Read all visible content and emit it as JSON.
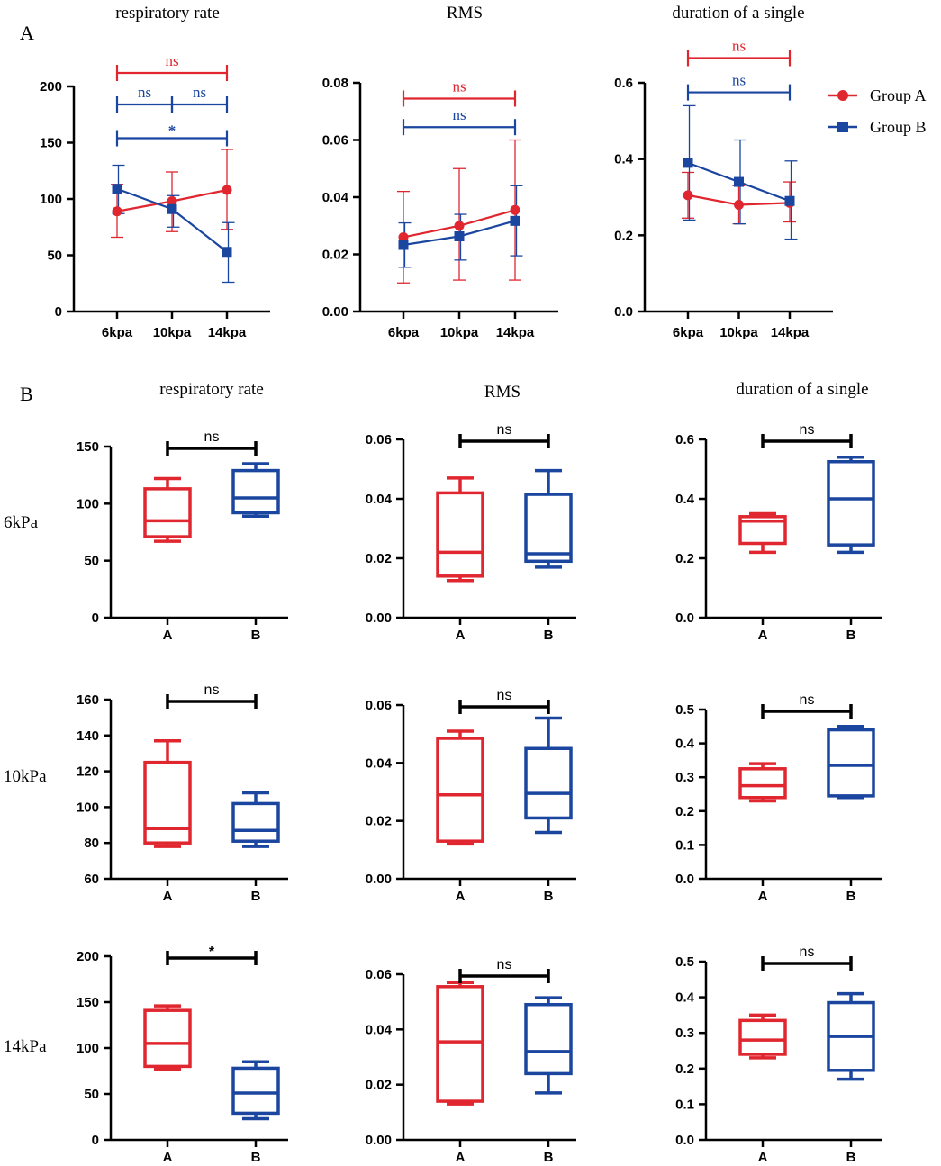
{
  "figure": {
    "panel_A_label": "A",
    "panel_B_label": "B",
    "row_labels": [
      "6kPa",
      "10kPa",
      "14kPa"
    ]
  },
  "colors": {
    "groupA": "#e0262f",
    "groupB": "#1b46a0",
    "axis": "#000000"
  },
  "legend": {
    "groupA": "Group A",
    "groupB": "Group B"
  },
  "chart_data": [
    {
      "id": "A1",
      "type": "line",
      "title": "respiratory rate",
      "categories": [
        "6kpa",
        "10kpa",
        "14kpa"
      ],
      "ylim": [
        0,
        200
      ],
      "yticks": [
        0,
        50,
        100,
        150,
        200
      ],
      "series": [
        {
          "name": "Group A",
          "color_key": "groupA",
          "marker": "circle",
          "values": [
            89,
            98,
            108
          ],
          "err_low": [
            66,
            71,
            73
          ],
          "err_high": [
            113,
            124,
            144
          ]
        },
        {
          "name": "Group B",
          "color_key": "groupB",
          "marker": "square",
          "values": [
            109,
            91,
            53
          ],
          "err_low": [
            87,
            75,
            26
          ],
          "err_high": [
            130,
            103,
            79
          ]
        }
      ],
      "annotations": [
        {
          "label": "ns",
          "color_key": "groupA",
          "from": 0,
          "to": 2,
          "y": 212
        },
        {
          "label": "ns",
          "color_key": "groupB",
          "from": 0,
          "to": 1,
          "y": 184
        },
        {
          "label": "ns",
          "color_key": "groupB",
          "from": 1,
          "to": 2,
          "y": 184
        },
        {
          "label": "*",
          "color_key": "groupB",
          "from": 0,
          "to": 2,
          "y": 154
        }
      ]
    },
    {
      "id": "A2",
      "type": "line",
      "title": "RMS",
      "categories": [
        "6kpa",
        "10kpa",
        "14kpa"
      ],
      "ylim": [
        0,
        0.08
      ],
      "yticks": [
        0.0,
        0.02,
        0.04,
        0.06,
        0.08
      ],
      "decimals": 2,
      "series": [
        {
          "name": "Group A",
          "color_key": "groupA",
          "marker": "circle",
          "values": [
            0.026,
            0.03,
            0.0355
          ],
          "err_low": [
            0.01,
            0.011,
            0.011
          ],
          "err_high": [
            0.042,
            0.05,
            0.06
          ]
        },
        {
          "name": "Group B",
          "color_key": "groupB",
          "marker": "square",
          "values": [
            0.0233,
            0.0263,
            0.0317
          ],
          "err_low": [
            0.0155,
            0.018,
            0.0195
          ],
          "err_high": [
            0.031,
            0.034,
            0.044
          ]
        }
      ],
      "annotations": [
        {
          "label": "ns",
          "color_key": "groupA",
          "from": 0,
          "to": 2,
          "y": 0.0745
        },
        {
          "label": "ns",
          "color_key": "groupB",
          "from": 0,
          "to": 2,
          "y": 0.0645
        }
      ]
    },
    {
      "id": "A3",
      "type": "line",
      "title": "duration of a single",
      "categories": [
        "6kpa",
        "10kpa",
        "14kpa"
      ],
      "ylim": [
        0,
        0.6
      ],
      "yticks": [
        0.0,
        0.2,
        0.4,
        0.6
      ],
      "decimals": 1,
      "series": [
        {
          "name": "Group A",
          "color_key": "groupA",
          "marker": "circle",
          "values": [
            0.305,
            0.28,
            0.285
          ],
          "err_low": [
            0.245,
            0.23,
            0.235
          ],
          "err_high": [
            0.365,
            0.33,
            0.34
          ]
        },
        {
          "name": "Group B",
          "color_key": "groupB",
          "marker": "square",
          "values": [
            0.39,
            0.34,
            0.29
          ],
          "err_low": [
            0.24,
            0.23,
            0.19
          ],
          "err_high": [
            0.54,
            0.45,
            0.395
          ]
        }
      ],
      "annotations": [
        {
          "label": "ns",
          "color_key": "groupA",
          "from": 0,
          "to": 2,
          "y": 0.665
        },
        {
          "label": "ns",
          "color_key": "groupB",
          "from": 0,
          "to": 2,
          "y": 0.575
        }
      ]
    },
    {
      "id": "B11",
      "type": "box",
      "title": "respiratory rate",
      "row": "6kPa",
      "categories": [
        "A",
        "B"
      ],
      "ylim": [
        0,
        150
      ],
      "yticks": [
        0,
        50,
        100,
        150
      ],
      "boxes": [
        {
          "group": "A",
          "color_key": "groupA",
          "min": 67,
          "q1": 71,
          "median": 85,
          "q3": 113,
          "max": 122
        },
        {
          "group": "B",
          "color_key": "groupB",
          "min": 89,
          "q1": 92,
          "median": 105,
          "q3": 129,
          "max": 135
        }
      ],
      "annotation": {
        "label": "ns",
        "y": 155
      }
    },
    {
      "id": "B12",
      "type": "box",
      "title": "RMS",
      "row": "6kPa",
      "categories": [
        "A",
        "B"
      ],
      "ylim": [
        0,
        0.06
      ],
      "yticks": [
        0.0,
        0.02,
        0.04,
        0.06
      ],
      "decimals": 2,
      "boxes": [
        {
          "group": "A",
          "color_key": "groupA",
          "min": 0.0125,
          "q1": 0.014,
          "median": 0.022,
          "q3": 0.042,
          "max": 0.047
        },
        {
          "group": "B",
          "color_key": "groupB",
          "min": 0.017,
          "q1": 0.019,
          "median": 0.0215,
          "q3": 0.0415,
          "max": 0.0495
        }
      ],
      "annotation": {
        "label": "ns",
        "y": 0.058
      }
    },
    {
      "id": "B13",
      "type": "box",
      "title": "duration of a single",
      "row": "6kPa",
      "categories": [
        "A",
        "B"
      ],
      "ylim": [
        0,
        0.6
      ],
      "yticks": [
        0.0,
        0.2,
        0.4,
        0.6
      ],
      "decimals": 1,
      "boxes": [
        {
          "group": "A",
          "color_key": "groupA",
          "min": 0.22,
          "q1": 0.25,
          "median": 0.325,
          "q3": 0.34,
          "max": 0.35
        },
        {
          "group": "B",
          "color_key": "groupB",
          "min": 0.22,
          "q1": 0.245,
          "median": 0.4,
          "q3": 0.525,
          "max": 0.54
        }
      ],
      "annotation": {
        "label": "ns",
        "y": 0.58
      }
    },
    {
      "id": "B21",
      "type": "box",
      "title": "respiratory rate",
      "row": "10kPa",
      "categories": [
        "A",
        "B"
      ],
      "ylim": [
        60,
        160
      ],
      "yticks": [
        60,
        80,
        100,
        120,
        140,
        160
      ],
      "boxes": [
        {
          "group": "A",
          "color_key": "groupA",
          "min": 78,
          "q1": 80,
          "median": 88,
          "q3": 125,
          "max": 137
        },
        {
          "group": "B",
          "color_key": "groupB",
          "min": 78,
          "q1": 81,
          "median": 87,
          "q3": 102,
          "max": 108
        }
      ],
      "annotation": {
        "label": "ns",
        "y": 155
      }
    },
    {
      "id": "B22",
      "type": "box",
      "title": "RMS",
      "row": "10kPa",
      "categories": [
        "A",
        "B"
      ],
      "ylim": [
        0,
        0.06
      ],
      "yticks": [
        0.0,
        0.02,
        0.04,
        0.06
      ],
      "decimals": 2,
      "boxes": [
        {
          "group": "A",
          "color_key": "groupA",
          "min": 0.012,
          "q1": 0.013,
          "median": 0.029,
          "q3": 0.0485,
          "max": 0.051
        },
        {
          "group": "B",
          "color_key": "groupB",
          "min": 0.016,
          "q1": 0.021,
          "median": 0.0295,
          "q3": 0.045,
          "max": 0.0555
        }
      ],
      "annotation": {
        "label": "ns",
        "y": 0.058
      }
    },
    {
      "id": "B23",
      "type": "box",
      "title": "duration of a single",
      "row": "10kPa",
      "categories": [
        "A",
        "B"
      ],
      "ylim": [
        0,
        0.5
      ],
      "yticks": [
        0.0,
        0.1,
        0.2,
        0.3,
        0.4,
        0.5
      ],
      "decimals": 1,
      "boxes": [
        {
          "group": "A",
          "color_key": "groupA",
          "min": 0.23,
          "q1": 0.24,
          "median": 0.275,
          "q3": 0.325,
          "max": 0.34
        },
        {
          "group": "B",
          "color_key": "groupB",
          "min": 0.24,
          "q1": 0.245,
          "median": 0.335,
          "q3": 0.44,
          "max": 0.45
        }
      ],
      "annotation": {
        "label": "ns",
        "y": 0.485
      }
    },
    {
      "id": "B31",
      "type": "box",
      "title": "respiratory rate",
      "row": "14kPa",
      "categories": [
        "A",
        "B"
      ],
      "ylim": [
        0,
        200
      ],
      "yticks": [
        0,
        50,
        100,
        150,
        200
      ],
      "boxes": [
        {
          "group": "A",
          "color_key": "groupA",
          "min": 77,
          "q1": 80,
          "median": 105,
          "q3": 141,
          "max": 146
        },
        {
          "group": "B",
          "color_key": "groupB",
          "min": 23,
          "q1": 29,
          "median": 51,
          "q3": 78,
          "max": 85
        }
      ],
      "annotation": {
        "label": "*",
        "y": 190
      }
    },
    {
      "id": "B32",
      "type": "box",
      "title": "RMS",
      "row": "14kPa",
      "categories": [
        "A",
        "B"
      ],
      "ylim": [
        0,
        0.06
      ],
      "yticks": [
        0.0,
        0.02,
        0.04,
        0.06
      ],
      "decimals": 2,
      "boxes": [
        {
          "group": "A",
          "color_key": "groupA",
          "min": 0.013,
          "q1": 0.014,
          "median": 0.0355,
          "q3": 0.0555,
          "max": 0.057
        },
        {
          "group": "B",
          "color_key": "groupB",
          "min": 0.017,
          "q1": 0.024,
          "median": 0.032,
          "q3": 0.049,
          "max": 0.0515
        }
      ],
      "annotation": {
        "label": "ns",
        "y": 0.058
      }
    },
    {
      "id": "B33",
      "type": "box",
      "title": "duration of a single",
      "row": "14kPa",
      "categories": [
        "A",
        "B"
      ],
      "ylim": [
        0,
        0.5
      ],
      "yticks": [
        0.0,
        0.1,
        0.2,
        0.3,
        0.4,
        0.5
      ],
      "decimals": 1,
      "boxes": [
        {
          "group": "A",
          "color_key": "groupA",
          "min": 0.23,
          "q1": 0.24,
          "median": 0.28,
          "q3": 0.335,
          "max": 0.35
        },
        {
          "group": "B",
          "color_key": "groupB",
          "min": 0.17,
          "q1": 0.195,
          "median": 0.29,
          "q3": 0.385,
          "max": 0.41
        }
      ],
      "annotation": {
        "label": "ns",
        "y": 0.485
      }
    }
  ]
}
